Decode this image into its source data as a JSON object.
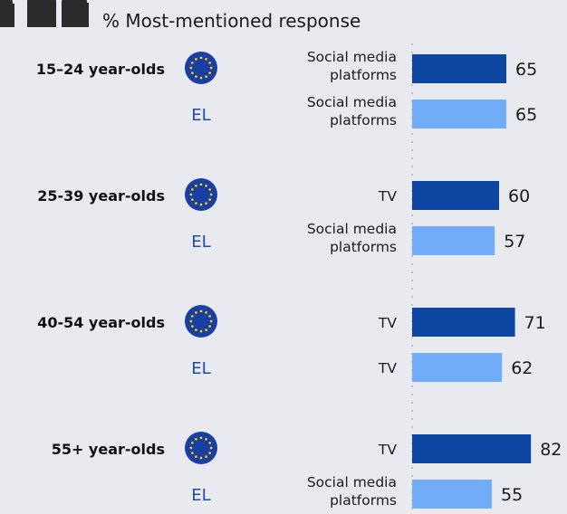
{
  "header": {
    "title": "% Most-mentioned response"
  },
  "colors": {
    "eu_bar": "#0e47a1",
    "el_bar": "#70adf6",
    "flag_blue": "#1a3fa3",
    "flag_star": "#f5d000",
    "people_icon": "#2b2b2b"
  },
  "chart_data": {
    "type": "bar",
    "orientation": "horizontal",
    "title": "% Most-mentioned response",
    "xlim": [
      0,
      100
    ],
    "groups": [
      {
        "label": "15–24 year-olds",
        "rows": [
          {
            "entity": "EU",
            "response": [
              "Social media",
              "platforms"
            ],
            "value": 65
          },
          {
            "entity": "EL",
            "response": [
              "Social media",
              "platforms"
            ],
            "value": 65
          }
        ]
      },
      {
        "label": "25-39 year-olds",
        "rows": [
          {
            "entity": "EU",
            "response": [
              "TV"
            ],
            "value": 60
          },
          {
            "entity": "EL",
            "response": [
              "Social media",
              "platforms"
            ],
            "value": 57
          }
        ]
      },
      {
        "label": "40-54 year-olds",
        "rows": [
          {
            "entity": "EU",
            "response": [
              "TV"
            ],
            "value": 71
          },
          {
            "entity": "EL",
            "response": [
              "TV"
            ],
            "value": 62
          }
        ]
      },
      {
        "label": "55+ year-olds",
        "rows": [
          {
            "entity": "EU",
            "response": [
              "TV"
            ],
            "value": 82
          },
          {
            "entity": "EL",
            "response": [
              "Social media",
              "platforms"
            ],
            "value": 55
          }
        ]
      }
    ]
  }
}
